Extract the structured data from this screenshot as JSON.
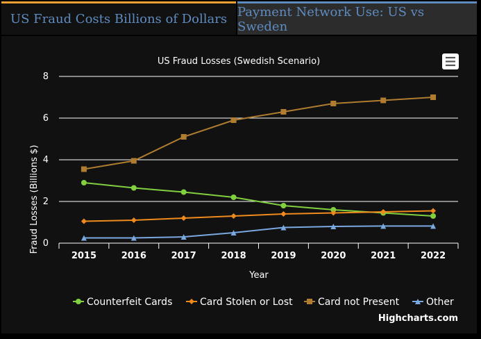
{
  "tabs": [
    {
      "label": "US Fraud Costs Billions of Dollars",
      "active": true
    },
    {
      "label": "Payment Network Use: US vs Sweden",
      "active": false
    }
  ],
  "credit": "Highcharts.com",
  "menu_icon": "hamburger-menu-icon",
  "chart_data": {
    "type": "line",
    "title": "US Fraud Losses (Swedish Scenario)",
    "xlabel": "Year",
    "ylabel": "Fraud Losses (Billions $)",
    "categories": [
      "2015",
      "2016",
      "2017",
      "2018",
      "2019",
      "2020",
      "2021",
      "2022"
    ],
    "ylim": [
      0,
      8
    ],
    "yticks": [
      0,
      2,
      4,
      6,
      8
    ],
    "grid": true,
    "legend_position": "bottom",
    "series": [
      {
        "name": "Counterfeit Cards",
        "color": "#80d040",
        "marker": "circle",
        "values": [
          2.9,
          2.65,
          2.45,
          2.2,
          1.8,
          1.6,
          1.45,
          1.3
        ]
      },
      {
        "name": "Card Stolen or Lost",
        "color": "#f08a1c",
        "marker": "diamond",
        "values": [
          1.05,
          1.1,
          1.2,
          1.3,
          1.4,
          1.45,
          1.5,
          1.55
        ]
      },
      {
        "name": "Card not Present",
        "color": "#b07c30",
        "marker": "square",
        "values": [
          3.55,
          3.95,
          5.1,
          5.9,
          6.3,
          6.7,
          6.85,
          7.0
        ]
      },
      {
        "name": "Other",
        "color": "#7aa8e0",
        "marker": "triangle",
        "values": [
          0.25,
          0.25,
          0.3,
          0.5,
          0.75,
          0.8,
          0.82,
          0.82
        ]
      }
    ]
  }
}
